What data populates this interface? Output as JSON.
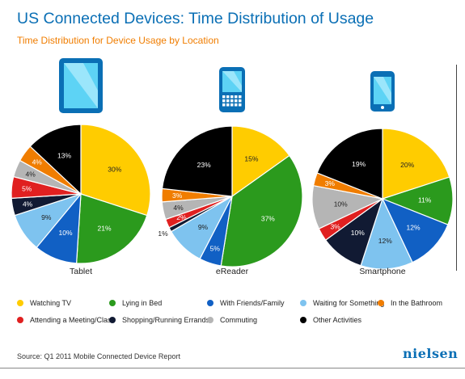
{
  "title": "US Connected Devices: Time Distribution of Usage",
  "subtitle": "Time Distribution for Device Usage by Location",
  "source": "Source: Q1 2011 Mobile Connected Device Report",
  "logo": "nielsen",
  "colors": {
    "title": "#0a6fb5",
    "subtitle": "#f07d00",
    "Watching TV": "#ffcc00",
    "Lying in Bed": "#2b9a1d",
    "With Friends/Family": "#1160c4",
    "Waiting for Something": "#7ec3ef",
    "In the Bathroom": "#f07d00",
    "Attending a Meeting/Class": "#e02020",
    "Shopping/Running Errands": "#111a33",
    "Commuting": "#b5b5b5",
    "Other Activities": "#000000"
  },
  "chart_data": {
    "type": "pie",
    "categories": [
      "Watching TV",
      "Lying in Bed",
      "With Friends/Family",
      "Waiting for Something",
      "In the Bathroom",
      "Attending a Meeting/Class",
      "Shopping/Running Errands",
      "Commuting",
      "Other Activities"
    ],
    "pies": [
      {
        "name": "Tablet",
        "icon": "tablet-icon",
        "slices": [
          {
            "category": "Watching TV",
            "value": 30,
            "label": "30%"
          },
          {
            "category": "Lying in Bed",
            "value": 21,
            "label": "21%"
          },
          {
            "category": "With Friends/Family",
            "value": 10,
            "label": "10%"
          },
          {
            "category": "Waiting for Something",
            "value": 9,
            "label": "9%"
          },
          {
            "category": "Shopping/Running Errands",
            "value": 4,
            "label": "4%"
          },
          {
            "category": "Attending a Meeting/Class",
            "value": 5,
            "label": "5%"
          },
          {
            "category": "Commuting",
            "value": 4,
            "label": "4%"
          },
          {
            "category": "In the Bathroom",
            "value": 4,
            "label": "4%"
          },
          {
            "category": "Other Activities",
            "value": 13,
            "label": "13%"
          }
        ]
      },
      {
        "name": "eReader",
        "icon": "ereader-icon",
        "slices": [
          {
            "category": "Watching TV",
            "value": 15,
            "label": "15%"
          },
          {
            "category": "Lying in Bed",
            "value": 37,
            "label": "37%"
          },
          {
            "category": "With Friends/Family",
            "value": 5,
            "label": "5%"
          },
          {
            "category": "Waiting for Something",
            "value": 9,
            "label": "9%"
          },
          {
            "category": "Shopping/Running Errands",
            "value": 1,
            "label": "1%"
          },
          {
            "category": "Attending a Meeting/Class",
            "value": 2,
            "label": "2%"
          },
          {
            "category": "Commuting",
            "value": 4,
            "label": "4%"
          },
          {
            "category": "In the Bathroom",
            "value": 3,
            "label": "3%"
          },
          {
            "category": "Other Activities",
            "value": 23,
            "label": "23%"
          }
        ]
      },
      {
        "name": "Smartphone",
        "icon": "smartphone-icon",
        "slices": [
          {
            "category": "Watching TV",
            "value": 20,
            "label": "20%"
          },
          {
            "category": "Lying in Bed",
            "value": 11,
            "label": "11%"
          },
          {
            "category": "With Friends/Family",
            "value": 12,
            "label": "12%"
          },
          {
            "category": "Waiting for Something",
            "value": 12,
            "label": "12%"
          },
          {
            "category": "Shopping/Running Errands",
            "value": 10,
            "label": "10%"
          },
          {
            "category": "Attending a Meeting/Class",
            "value": 3,
            "label": "3%"
          },
          {
            "category": "Commuting",
            "value": 10,
            "label": "10%"
          },
          {
            "category": "In the Bathroom",
            "value": 3,
            "label": "3%"
          },
          {
            "category": "Other Activities",
            "value": 19,
            "label": "19%"
          }
        ]
      }
    ],
    "legend": [
      "Watching TV",
      "Lying in Bed",
      "With Friends/Family",
      "Waiting for Something",
      "In the Bathroom",
      "Attending a Meeting/Class",
      "Shopping/Running Errands",
      "Commuting",
      "Other Activities"
    ]
  }
}
